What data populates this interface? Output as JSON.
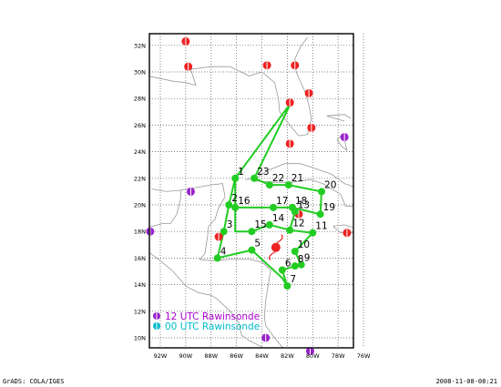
{
  "map": {
    "x_labels": [
      "92W",
      "90W",
      "88W",
      "86W",
      "84W",
      "82W",
      "80W",
      "78W",
      "76W"
    ],
    "y_labels": [
      "10N",
      "12N",
      "14N",
      "16N",
      "18N",
      "20N",
      "22N",
      "24N",
      "26N",
      "28N",
      "30N",
      "32N"
    ],
    "colors": {
      "flight_track": "#22cc22",
      "waypoint": "#22cc22",
      "station_12utc": "#9922cc",
      "station_00utc": "#00bbcc",
      "station_red": "#ee2222",
      "coast": "#999999",
      "grid": "#555555"
    },
    "waypoints": [
      {
        "label": "1",
        "lon": -86.1,
        "lat": 22.0
      },
      {
        "label": "2",
        "lon": -86.6,
        "lat": 20.0
      },
      {
        "label": "3",
        "lon": -87.0,
        "lat": 18.0
      },
      {
        "label": "4",
        "lon": -87.5,
        "lat": 16.0
      },
      {
        "label": "5",
        "lon": -84.8,
        "lat": 16.6
      },
      {
        "label": "6",
        "lon": -82.4,
        "lat": 15.1
      },
      {
        "label": "7",
        "lon": -82.0,
        "lat": 13.9
      },
      {
        "label": "8",
        "lon": -81.4,
        "lat": 15.4
      },
      {
        "label": "9",
        "lon": -80.9,
        "lat": 15.5
      },
      {
        "label": "10",
        "lon": -81.4,
        "lat": 16.5
      },
      {
        "label": "11",
        "lon": -80.0,
        "lat": 17.9
      },
      {
        "label": "12",
        "lon": -81.8,
        "lat": 18.1
      },
      {
        "label": "13",
        "lon": -81.4,
        "lat": 19.5
      },
      {
        "label": "14",
        "lon": -83.4,
        "lat": 18.5
      },
      {
        "label": "15",
        "lon": -84.8,
        "lat": 18.0
      },
      {
        "label": "16",
        "lon": -86.1,
        "lat": 19.8
      },
      {
        "label": "17",
        "lon": -83.1,
        "lat": 19.8
      },
      {
        "label": "18",
        "lon": -81.6,
        "lat": 19.8
      },
      {
        "label": "19",
        "lon": -79.4,
        "lat": 19.3
      },
      {
        "label": "20",
        "lon": -79.3,
        "lat": 21.0
      },
      {
        "label": "21",
        "lon": -81.9,
        "lat": 21.5
      },
      {
        "label": "22",
        "lon": -83.4,
        "lat": 21.5
      },
      {
        "label": "23",
        "lon": -84.6,
        "lat": 22.0
      }
    ],
    "track_paths": [
      [
        [
          -81.7,
          27.7
        ],
        [
          -86.1,
          22.0
        ],
        [
          -86.6,
          20.0
        ],
        [
          -87.0,
          18.0
        ],
        [
          -87.5,
          16.0
        ],
        [
          -84.8,
          16.6
        ],
        [
          -82.4,
          14.5
        ],
        [
          -82.0,
          13.9
        ],
        [
          -82.4,
          15.1
        ],
        [
          -81.4,
          15.4
        ],
        [
          -80.9,
          15.5
        ],
        [
          -81.4,
          16.5
        ],
        [
          -80.0,
          17.9
        ],
        [
          -81.8,
          18.1
        ],
        [
          -83.4,
          18.5
        ],
        [
          -84.8,
          18.0
        ],
        [
          -86.1,
          18.0
        ],
        [
          -86.1,
          19.8
        ],
        [
          -83.1,
          19.8
        ],
        [
          -81.6,
          19.8
        ],
        [
          -79.4,
          19.3
        ],
        [
          -79.3,
          21.0
        ],
        [
          -81.9,
          21.5
        ],
        [
          -83.4,
          21.5
        ],
        [
          -84.6,
          22.0
        ],
        [
          -81.7,
          27.7
        ]
      ],
      [
        [
          -86.1,
          19.8
        ],
        [
          -86.1,
          22.0
        ]
      ],
      [
        [
          -81.8,
          18.1
        ],
        [
          -81.4,
          19.5
        ]
      ]
    ],
    "red_stations": [
      [
        -90.0,
        32.3
      ],
      [
        -89.8,
        30.4
      ],
      [
        -83.6,
        30.5
      ],
      [
        -81.4,
        30.5
      ],
      [
        -80.3,
        28.4
      ],
      [
        -81.8,
        27.7
      ],
      [
        -80.1,
        25.8
      ],
      [
        -81.8,
        24.6
      ],
      [
        -81.1,
        19.3
      ],
      [
        -87.4,
        17.6
      ],
      [
        -77.3,
        17.9
      ]
    ],
    "purple_stations": [
      [
        -77.5,
        25.1
      ],
      [
        -89.6,
        21.0
      ],
      [
        -92.8,
        18.0
      ],
      [
        -83.7,
        10.0
      ],
      [
        -80.2,
        9.0
      ]
    ],
    "storm": {
      "lon": -82.9,
      "lat": 16.8
    },
    "legend": [
      {
        "text": "12 UTC Rawinsonde",
        "color": "#9922cc"
      },
      {
        "text": "00 UTC Rawinsonde",
        "color": "#00bbcc"
      }
    ]
  },
  "footer": {
    "left": "GrADS: COLA/IGES",
    "right": "2008-11-08-08:21"
  }
}
